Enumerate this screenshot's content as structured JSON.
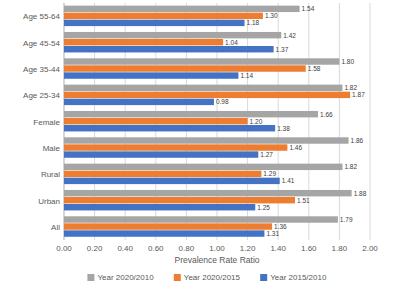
{
  "chart_data": {
    "type": "bar",
    "orientation": "horizontal",
    "x_label": "Prevalence Rate Ratio",
    "categories": [
      "Age 55-64",
      "Age 45-54",
      "Age 35-44",
      "Age 25-34",
      "Female",
      "Male",
      "Rural",
      "Urban",
      "All"
    ],
    "series": [
      {
        "name": "Year 2020/2010",
        "color": "#a5a5a5",
        "values": [
          1.54,
          1.42,
          1.8,
          1.82,
          1.66,
          1.86,
          1.82,
          1.88,
          1.79
        ],
        "value_labels": [
          "1.54",
          "1.42",
          "1.80",
          "1.82",
          "1.66",
          "1.86",
          "1.82",
          "1.88",
          "1.79"
        ]
      },
      {
        "name": "Year 2020/2015",
        "color": "#ed7d31",
        "values": [
          1.3,
          1.04,
          1.58,
          1.87,
          1.2,
          1.46,
          1.29,
          1.51,
          1.36
        ],
        "value_labels": [
          "1.30",
          "1.04",
          "1.58",
          "1.87",
          "1.20",
          "1.46",
          "1.29",
          "1.51",
          "1.36"
        ]
      },
      {
        "name": "Year 2015/2010",
        "color": "#4472c4",
        "values": [
          1.18,
          1.37,
          1.14,
          0.98,
          1.38,
          1.27,
          1.41,
          1.25,
          1.31
        ],
        "value_labels": [
          "1.18",
          "1.37",
          "1.14",
          "0.98",
          "1.38",
          "1.27",
          "1.41",
          "1.25",
          "1.31"
        ]
      }
    ],
    "xlim": [
      0,
      2
    ],
    "xticks": [
      {
        "value": 0,
        "label": "0.00"
      },
      {
        "value": 0.2,
        "label": "0.20"
      },
      {
        "value": 0.4,
        "label": "0.40"
      },
      {
        "value": 0.6,
        "label": "0.60"
      },
      {
        "value": 0.8,
        "label": "0.80"
      },
      {
        "value": 1,
        "label": "1.00"
      },
      {
        "value": 1.2,
        "label": "1.20"
      },
      {
        "value": 1.4,
        "label": "1.40"
      },
      {
        "value": 1.6,
        "label": "1.60"
      },
      {
        "value": 1.8,
        "label": "1.80"
      },
      {
        "value": 2,
        "label": "2.00"
      }
    ],
    "grid": true,
    "data_labels": true,
    "legend": "bottom"
  }
}
